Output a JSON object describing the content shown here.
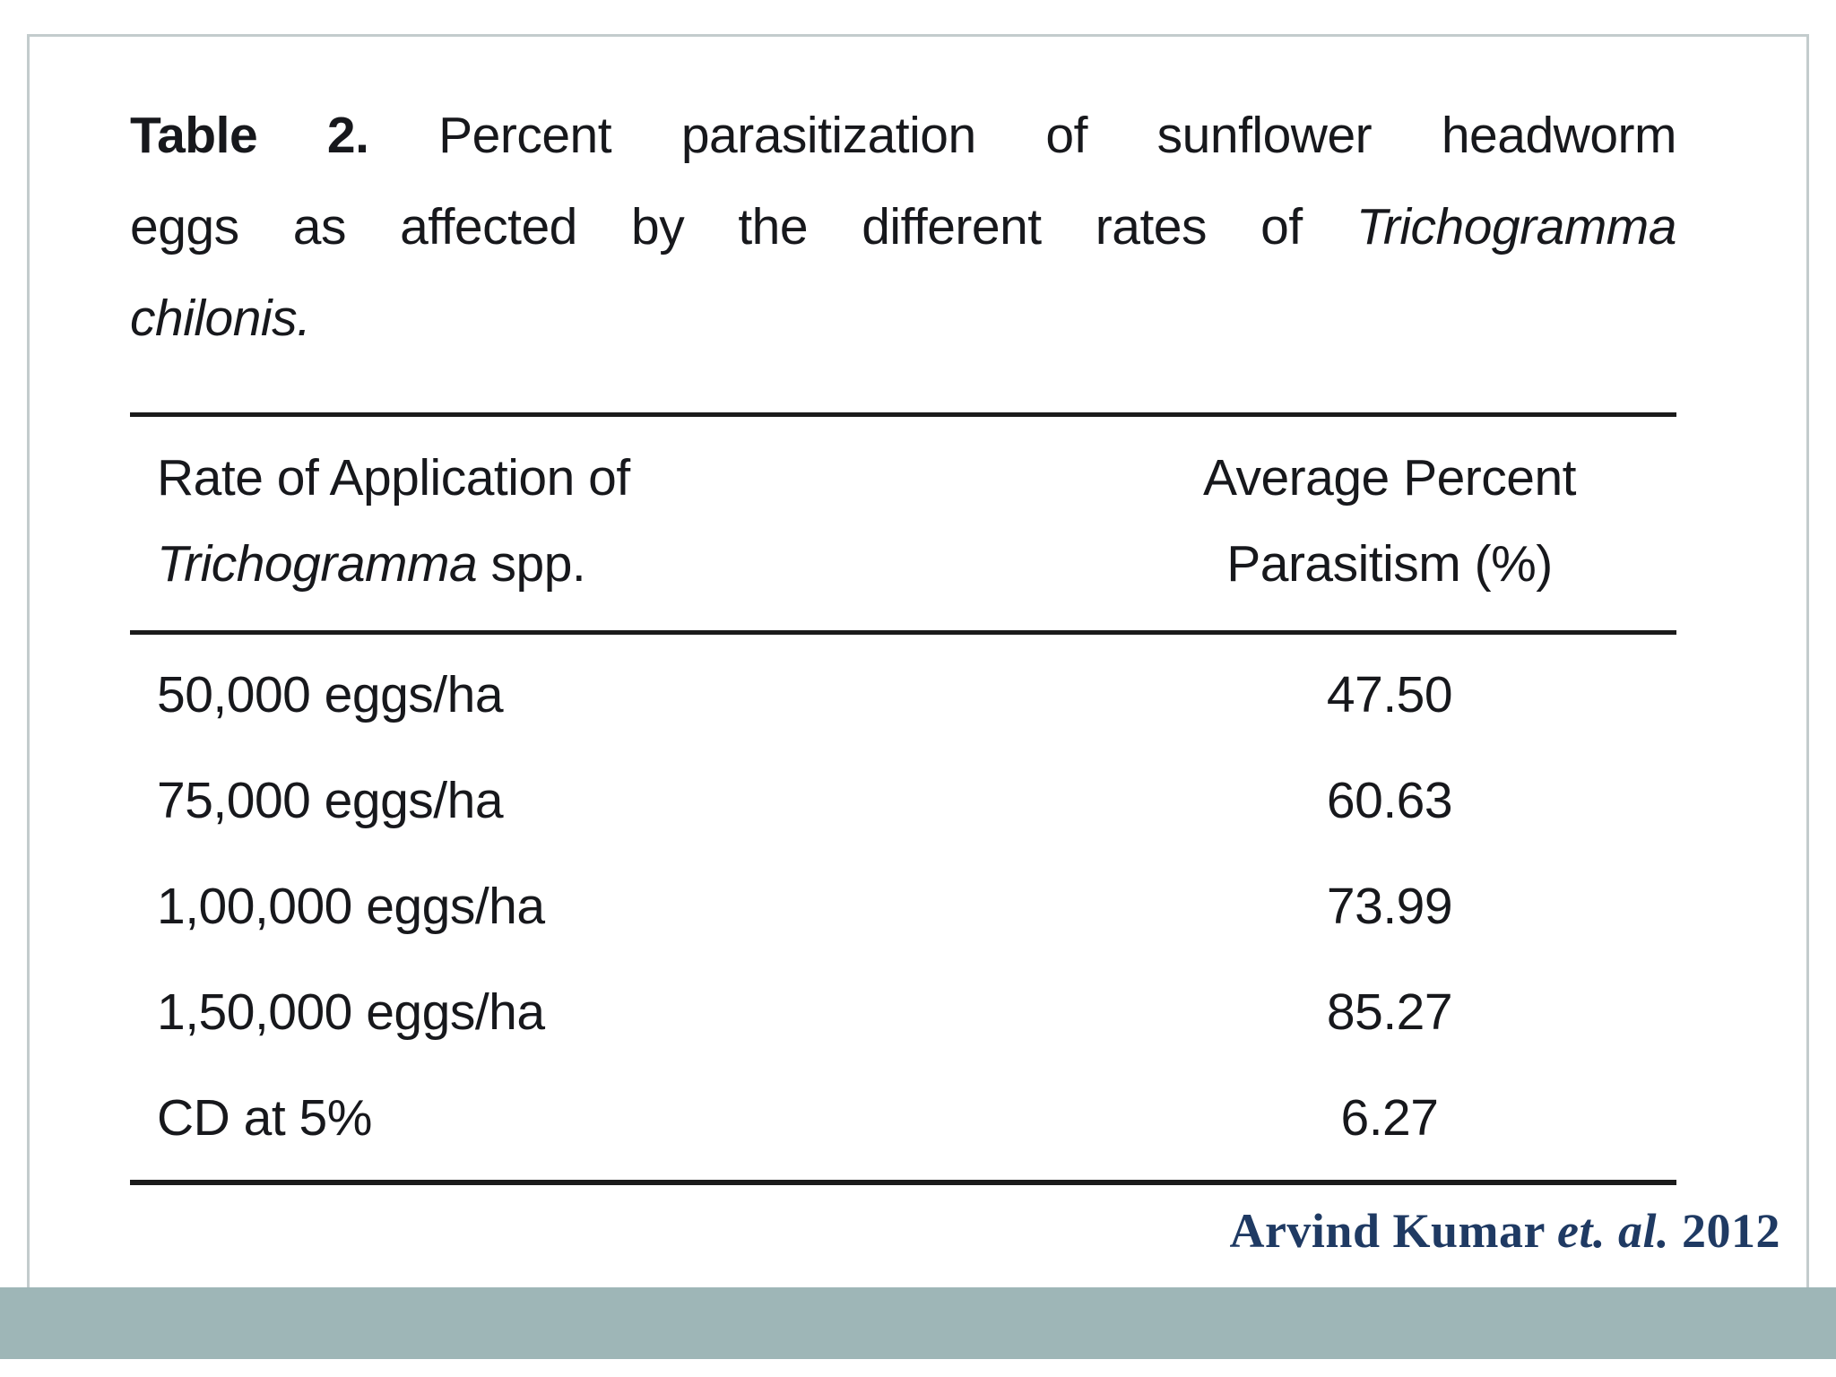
{
  "table": {
    "title": {
      "label": "Table 2.",
      "line1_rest": "Percent parasitization of sunflower headworm",
      "line2_text": "eggs as affected by the different rates of",
      "line2_italic": "Trichogramma",
      "line3_italic": "chilonis."
    },
    "header": {
      "col1_line1": "Rate of Application of",
      "col1_italic": "Trichogramma",
      "col1_rest": "spp.",
      "col2_line1": "Average Percent",
      "col2_line2": "Parasitism (%)"
    },
    "rows": [
      {
        "rate": "50,000 eggs/ha",
        "value": "47.50"
      },
      {
        "rate": "75,000 eggs/ha",
        "value": "60.63"
      },
      {
        "rate": "1,00,000 eggs/ha",
        "value": "73.99"
      },
      {
        "rate": "1,50,000 eggs/ha",
        "value": "85.27"
      },
      {
        "rate": "CD at 5%",
        "value": "6.27"
      }
    ]
  },
  "citation": {
    "author": "Arvind Kumar",
    "etal": "et. al.",
    "year": "2012"
  },
  "colors": {
    "footer_bar": "#9eb6b7",
    "frame_border": "#c3cccd",
    "table_text": "#17181c",
    "rule": "#1b1b1b",
    "citation_text": "#1f3a63"
  },
  "chart_data": {
    "type": "table",
    "title": "Table 2. Percent parasitization of sunflower headworm eggs as affected by the different rates of Trichogramma chilonis.",
    "columns": [
      "Rate of Application of Trichogramma spp.",
      "Average Percent Parasitism (%)"
    ],
    "rows": [
      [
        "50,000 eggs/ha",
        47.5
      ],
      [
        "75,000 eggs/ha",
        60.63
      ],
      [
        "1,00,000 eggs/ha",
        73.99
      ],
      [
        "1,50,000 eggs/ha",
        85.27
      ],
      [
        "CD at 5%",
        6.27
      ]
    ],
    "source": "Arvind Kumar et. al. 2012"
  }
}
